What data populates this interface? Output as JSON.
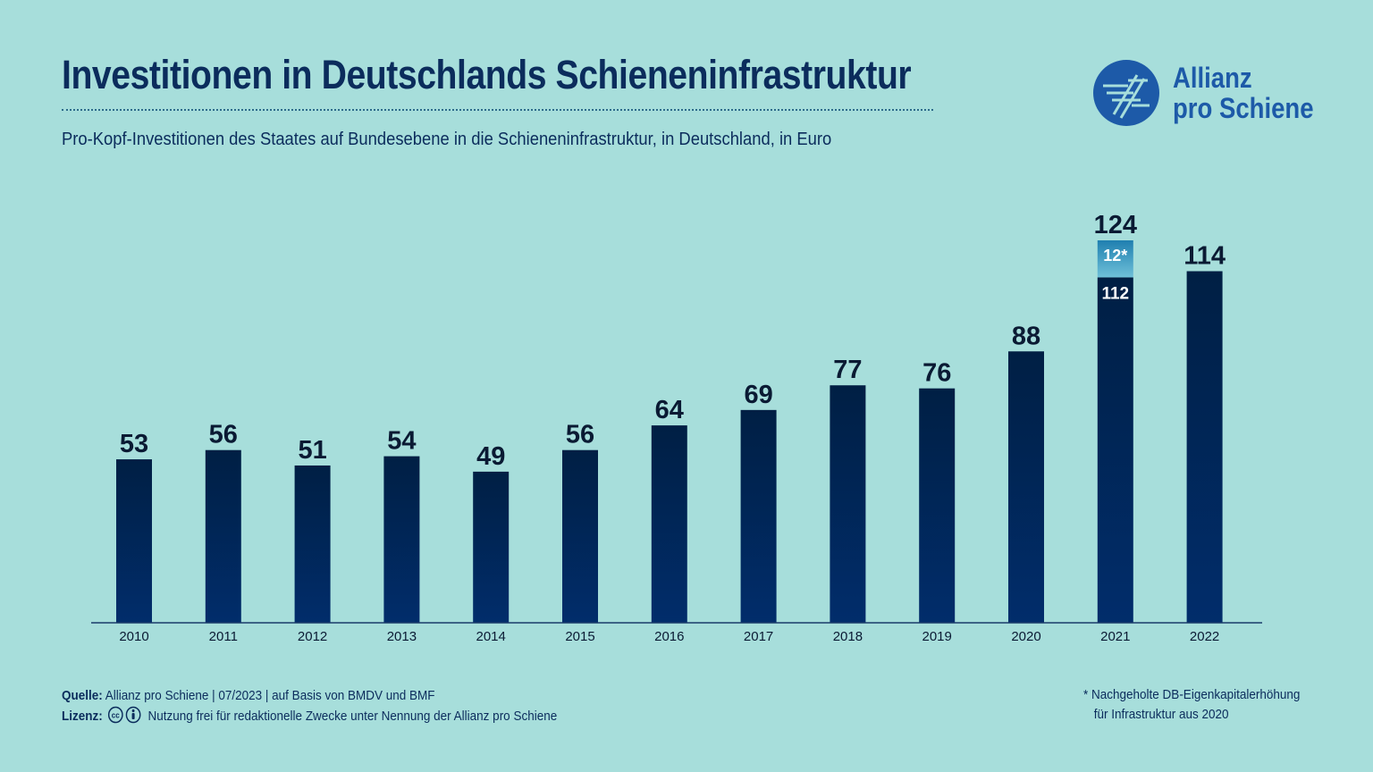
{
  "header": {
    "title": "Investitionen in Deutschlands Schieneninfrastruktur",
    "subtitle": "Pro-Kopf-Investitionen des Staates auf Bundesebene in die Schieneninfrastruktur, in Deutschland, in Euro"
  },
  "logo": {
    "line1": "Allianz",
    "line2": "pro Schiene",
    "color": "#1d5aa8"
  },
  "chart_data": {
    "type": "bar",
    "categories": [
      "2010",
      "2011",
      "2012",
      "2013",
      "2014",
      "2015",
      "2016",
      "2017",
      "2018",
      "2019",
      "2020",
      "2021",
      "2022"
    ],
    "values": [
      53,
      56,
      51,
      54,
      49,
      56,
      64,
      69,
      77,
      76,
      88,
      124,
      114
    ],
    "value_labels": [
      "53",
      "56",
      "51",
      "54",
      "49",
      "56",
      "64",
      "69",
      "77",
      "76",
      "88",
      "124",
      "114"
    ],
    "stacked_2021": {
      "category": "2021",
      "base": 112,
      "base_label": "112",
      "top": 12,
      "top_label": "12*"
    },
    "title": "",
    "xlabel": "",
    "ylabel": "",
    "ylim": [
      0,
      124
    ],
    "grid": false,
    "colors": {
      "bar_top": "#001f44",
      "bar_bottom": "#012d6b",
      "stack_top": "#1f7fb0",
      "stack_bottom": "#5fb6d3",
      "axis": "#1a3b6b"
    }
  },
  "footer": {
    "source_label": "Quelle:",
    "source_text": "Allianz pro Schiene | 07/2023 | auf Basis von BMDV und BMF",
    "license_label": "Lizenz:",
    "license_text": "Nutzung frei für redaktionelle Zwecke unter Nennung der Allianz pro Schiene",
    "note_line1": "* Nachgeholte DB-Eigenkapitalerhöhung",
    "note_line2": "für Infrastruktur aus 2020"
  },
  "background": "#a7dedb"
}
